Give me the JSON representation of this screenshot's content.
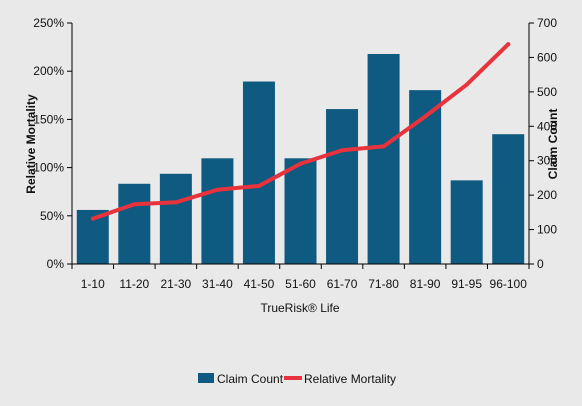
{
  "chart_data": {
    "type": "bar",
    "xlabel": "TrueRisk® Life",
    "categories": [
      "1-10",
      "11-20",
      "21-30",
      "31-40",
      "41-50",
      "51-60",
      "61-70",
      "71-80",
      "81-90",
      "91-95",
      "96-100"
    ],
    "series": [
      {
        "name": "Claim Count",
        "type": "bar",
        "axis": "right",
        "color": "#0f5a80",
        "values": [
          157,
          233,
          262,
          307,
          530,
          307,
          450,
          610,
          505,
          243,
          377
        ]
      },
      {
        "name": "Relative Mortality",
        "type": "line",
        "axis": "left",
        "color": "#e8323c",
        "values": [
          0.47,
          0.62,
          0.64,
          0.77,
          0.81,
          1.04,
          1.18,
          1.22,
          1.53,
          1.86,
          2.28
        ]
      }
    ],
    "y_left": {
      "label": "Relative Mortality",
      "lim": [
        0,
        2.5
      ],
      "ticks": [
        "0%",
        "50%",
        "100%",
        "150%",
        "200%",
        "250%"
      ]
    },
    "y_right": {
      "label": "Claim Count",
      "lim": [
        0,
        700
      ],
      "ticks": [
        "0",
        "100",
        "200",
        "300",
        "400",
        "500",
        "600",
        "700"
      ]
    },
    "legend": [
      "Claim Count",
      "Relative Mortality"
    ],
    "legend_position": "bottom",
    "grid": false
  }
}
